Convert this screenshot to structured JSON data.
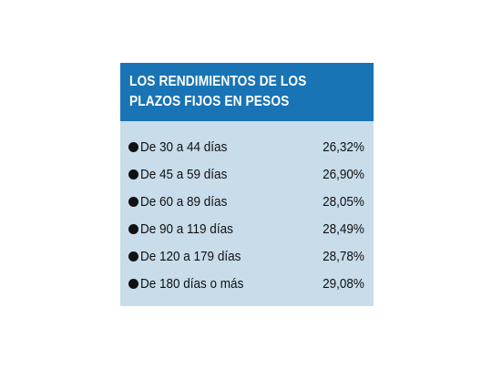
{
  "chart_data": {
    "type": "table",
    "title_lines": [
      "LOS RENDIMIENTOS DE LOS",
      "PLAZOS FIJOS EN PESOS"
    ],
    "rows": [
      {
        "label": "De 30 a 44 días",
        "value": "26,32%"
      },
      {
        "label": "De 45 a 59 días",
        "value": "26,90%"
      },
      {
        "label": "De 60 a 89 días",
        "value": "28,05%"
      },
      {
        "label": "De 90 a 119 días",
        "value": "28,49%"
      },
      {
        "label": "De 120 a 179 días",
        "value": "28,78%"
      },
      {
        "label": "De 180 días o más",
        "value": "29,08%"
      }
    ]
  },
  "colors": {
    "header_bg": "#1874b4",
    "body_bg": "#c8dcea",
    "text": "#111111",
    "header_text": "#ffffff"
  },
  "icons": {
    "row_bullet": "filled-circle"
  }
}
